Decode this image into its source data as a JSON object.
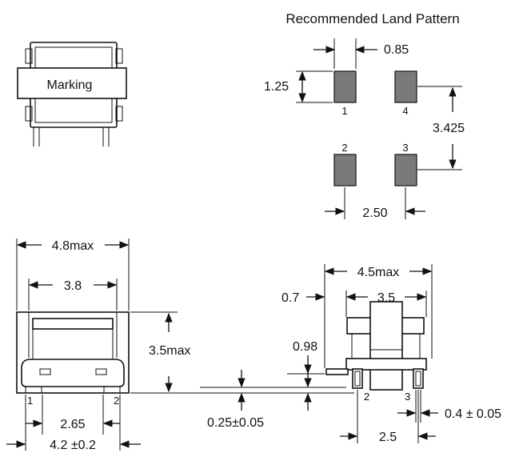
{
  "title": "Recommended Land Pattern",
  "marking": "Marking",
  "land": {
    "pad_width": "0.85",
    "pad_height": "1.25",
    "row_spacing": "3.425",
    "col_spacing": "2.50",
    "pins": [
      "1",
      "4",
      "2",
      "3"
    ]
  },
  "front": {
    "width_max": "4.8max",
    "inner_width": "3.8",
    "height_max": "3.5max",
    "pin_spacing": "2.65",
    "footprint": "4.2 ±0.2",
    "pins": [
      "1",
      "2"
    ]
  },
  "side": {
    "width_max": "4.5max",
    "inner_width": "3.5",
    "offset": "0.7",
    "lead_height": "0.98",
    "standoff": "0.25±0.05",
    "pin_pitch": "2.5",
    "lead_thickness": "0.4  ±  0.05",
    "pins": [
      "2",
      "3"
    ]
  }
}
